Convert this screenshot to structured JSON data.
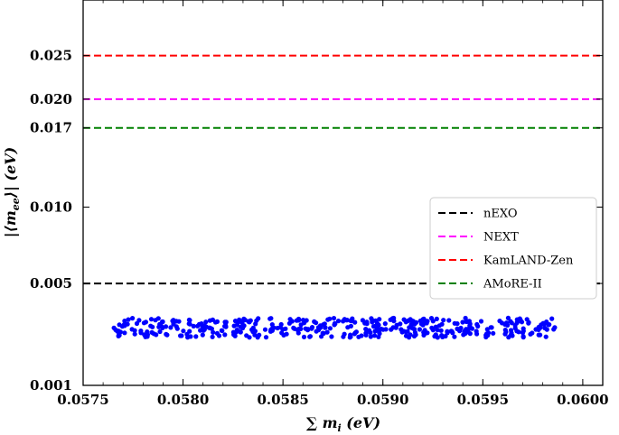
{
  "chart_data": {
    "type": "scatter",
    "xlabel": "∑ m_i (eV)",
    "ylabel": "|⟨m_ee⟩| (eV)",
    "xlim": [
      0.0575,
      0.0601
    ],
    "ylim": [
      0.001,
      0.0322
    ],
    "x_ticks": [
      "0.0575",
      "0.0580",
      "0.0585",
      "0.0590",
      "0.0595",
      "0.0600"
    ],
    "y_ticks": [
      "0.001",
      "0.005",
      "0.010",
      "0.017",
      "0.020",
      "0.025"
    ],
    "grid": false,
    "legend_position": "center-right",
    "reference_lines": [
      {
        "name": "nEXO",
        "y": 0.005,
        "color": "#000000"
      },
      {
        "name": "NEXT",
        "y": 0.02,
        "color": "#ff00ff"
      },
      {
        "name": "KamLAND-Zen",
        "y": 0.025,
        "color": "#ff0000"
      },
      {
        "name": "AMoRE-II",
        "y": 0.017,
        "color": "#008000"
      }
    ],
    "scatter": {
      "color": "#0000ff",
      "x_range": [
        0.05765,
        0.05987
      ],
      "y_range": [
        0.0025,
        0.0033
      ],
      "n_points": 420
    }
  }
}
